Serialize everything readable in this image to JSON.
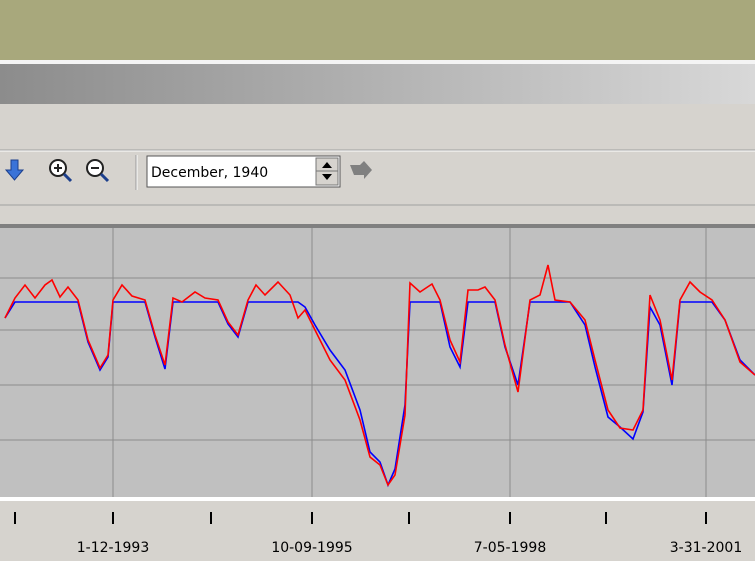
{
  "toolbar": {
    "date_field": "December, 1940"
  },
  "chart_data": {
    "type": "line",
    "x": [
      5,
      15,
      25,
      35,
      45,
      52,
      60,
      68,
      78,
      88,
      100,
      108,
      113,
      122,
      132,
      145,
      155,
      165,
      173,
      182,
      195,
      205,
      218,
      228,
      238,
      248,
      256,
      265,
      278,
      290,
      298,
      305,
      315,
      330,
      345,
      360,
      370,
      380,
      388,
      395,
      405,
      410,
      420,
      432,
      440,
      450,
      460,
      468,
      478,
      485,
      495,
      505,
      518,
      530,
      540,
      548,
      555,
      570,
      585,
      595,
      608,
      620,
      633,
      643,
      650,
      660,
      672,
      680,
      690,
      700,
      712,
      725,
      740,
      755
    ],
    "series": [
      {
        "color": "#0000ff",
        "values": [
          179,
          195,
          195,
          195,
          195,
          195,
          195,
          195,
          195,
          155,
          127,
          140,
          195,
          195,
          195,
          195,
          160,
          128,
          195,
          195,
          195,
          195,
          195,
          173,
          160,
          195,
          195,
          195,
          195,
          195,
          195,
          190,
          172,
          147,
          127,
          87,
          45,
          35,
          12,
          28,
          92,
          195,
          195,
          195,
          195,
          150,
          130,
          195,
          195,
          195,
          195,
          150,
          112,
          195,
          195,
          195,
          195,
          195,
          172,
          130,
          80,
          70,
          58,
          85,
          190,
          172,
          112,
          195,
          195,
          195,
          195,
          177,
          137,
          122
        ]
      },
      {
        "color": "#ff0000",
        "values": [
          179,
          199,
          212,
          199,
          212,
          217,
          200,
          210,
          197,
          157,
          129,
          142,
          197,
          212,
          201,
          197,
          162,
          132,
          199,
          195,
          205,
          199,
          197,
          175,
          162,
          197,
          212,
          202,
          215,
          202,
          179,
          187,
          167,
          137,
          117,
          77,
          40,
          32,
          12,
          22,
          82,
          214,
          205,
          213,
          197,
          157,
          135,
          207,
          207,
          210,
          197,
          152,
          105,
          197,
          202,
          232,
          197,
          195,
          177,
          137,
          87,
          69,
          67,
          87,
          202,
          177,
          117,
          197,
          215,
          205,
          197,
          177,
          135,
          122
        ]
      }
    ],
    "xlim": [
      0,
      755
    ],
    "xticks": [
      {
        "value": 113,
        "label": "1-12-1993"
      },
      {
        "value": 312,
        "label": "10-09-1995"
      },
      {
        "value": 510,
        "label": "7-05-1998"
      },
      {
        "value": 706,
        "label": "3-31-2001"
      }
    ],
    "ylim": [
      0,
      269
    ],
    "yticks": [
      219,
      167,
      112,
      57
    ],
    "grid": true
  }
}
